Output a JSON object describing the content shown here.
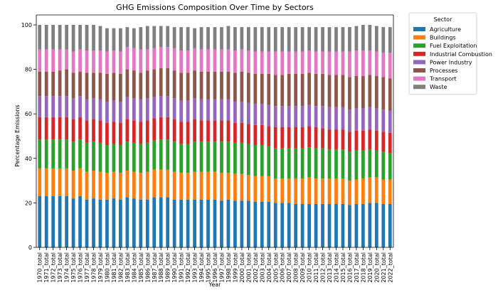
{
  "chart_data": {
    "type": "bar",
    "stacked": true,
    "title": "GHG Emissions Composition Over Time by Sectors",
    "xlabel": "Year",
    "ylabel": "Percentage Emissions",
    "ylim": [
      0,
      100
    ],
    "yticks": [
      0,
      20,
      40,
      60,
      80,
      100
    ],
    "legend_title": "Sector",
    "legend_position": "outside-right-top",
    "grid": false,
    "categories": [
      "1970_total",
      "1971_total",
      "1972_total",
      "1973_total",
      "1974_total",
      "1975_total",
      "1976_total",
      "1977_total",
      "1978_total",
      "1979_total",
      "1980_total",
      "1981_total",
      "1982_total",
      "1983_total",
      "1984_total",
      "1985_total",
      "1986_total",
      "1987_total",
      "1988_total",
      "1989_total",
      "1990_total",
      "1991_total",
      "1992_total",
      "1993_total",
      "1994_total",
      "1995_total",
      "1996_total",
      "1997_total",
      "1998_total",
      "1999_total",
      "2000_total",
      "2001_total",
      "2002_total",
      "2003_total",
      "2004_total",
      "2005_total",
      "2006_total",
      "2007_total",
      "2008_total",
      "2009_total",
      "2010_total",
      "2011_total",
      "2012_total",
      "2013_total",
      "2014_total",
      "2015_total",
      "2016_total",
      "2017_total",
      "2018_total",
      "2019_total",
      "2020_total",
      "2021_total",
      "2022_total"
    ],
    "series": [
      {
        "name": "Agriculture",
        "color": "#1f77b4",
        "values": [
          23.0,
          23.0,
          23.0,
          23.0,
          23.0,
          22.0,
          23.0,
          21.5,
          22.0,
          21.5,
          21.5,
          22.0,
          21.5,
          22.5,
          22.0,
          21.5,
          21.5,
          22.5,
          22.5,
          22.5,
          21.5,
          21.5,
          21.5,
          21.5,
          21.5,
          21.5,
          21.5,
          21.0,
          21.5,
          21.0,
          21.0,
          21.0,
          20.5,
          20.5,
          20.5,
          20.0,
          20.0,
          20.0,
          19.5,
          19.5,
          19.5,
          19.5,
          19.5,
          19.5,
          19.5,
          19.5,
          19.0,
          19.5,
          19.5,
          20.0,
          20.0,
          19.5,
          19.5
        ]
      },
      {
        "name": "Buildings",
        "color": "#ff7f0e",
        "values": [
          12.5,
          12.5,
          12.5,
          12.5,
          12.5,
          12.5,
          12.5,
          12.5,
          12.5,
          12.5,
          12.0,
          12.0,
          12.0,
          12.0,
          12.0,
          12.0,
          12.5,
          12.5,
          12.5,
          12.5,
          12.5,
          12.0,
          12.0,
          12.5,
          12.5,
          12.5,
          12.5,
          12.5,
          12.0,
          12.0,
          12.0,
          11.5,
          11.5,
          11.5,
          11.5,
          11.0,
          11.0,
          11.0,
          11.5,
          11.5,
          12.0,
          11.5,
          11.5,
          11.5,
          11.5,
          11.5,
          11.0,
          11.0,
          11.5,
          11.5,
          11.5,
          11.0,
          11.0
        ]
      },
      {
        "name": "Fuel Exploitation",
        "color": "#2ca02c",
        "values": [
          13.0,
          13.0,
          13.0,
          13.0,
          13.0,
          13.0,
          13.0,
          13.0,
          13.0,
          13.0,
          12.5,
          12.5,
          12.5,
          13.0,
          13.0,
          13.0,
          13.0,
          13.0,
          13.5,
          13.5,
          13.5,
          13.0,
          13.0,
          13.5,
          13.5,
          13.5,
          13.5,
          14.0,
          14.0,
          14.0,
          14.0,
          14.0,
          14.0,
          14.0,
          13.5,
          13.5,
          13.5,
          13.5,
          13.5,
          13.5,
          13.5,
          13.5,
          13.5,
          13.0,
          13.0,
          13.0,
          13.0,
          13.0,
          12.5,
          12.5,
          12.0,
          12.5,
          12.0
        ]
      },
      {
        "name": "Industrial Combustion",
        "color": "#d62728",
        "values": [
          10.0,
          10.0,
          10.0,
          10.0,
          10.0,
          10.0,
          10.0,
          10.0,
          10.0,
          10.0,
          10.0,
          10.0,
          10.0,
          10.0,
          10.0,
          10.0,
          10.0,
          10.0,
          10.0,
          10.0,
          10.0,
          10.0,
          10.0,
          10.0,
          9.5,
          9.5,
          9.5,
          9.5,
          9.5,
          9.0,
          9.0,
          9.0,
          9.0,
          9.0,
          9.0,
          9.5,
          9.5,
          9.5,
          9.5,
          9.5,
          9.5,
          9.5,
          9.0,
          9.0,
          9.0,
          9.0,
          9.0,
          9.0,
          9.0,
          9.0,
          9.0,
          9.0,
          9.0
        ]
      },
      {
        "name": "Power Industry",
        "color": "#9467bd",
        "values": [
          9.5,
          9.5,
          9.5,
          9.5,
          9.5,
          9.5,
          9.5,
          9.5,
          9.5,
          9.5,
          9.5,
          9.5,
          9.5,
          10.0,
          10.0,
          10.0,
          10.0,
          9.5,
          9.5,
          9.5,
          9.5,
          9.5,
          9.5,
          9.5,
          9.5,
          9.5,
          9.5,
          9.5,
          9.5,
          9.5,
          9.5,
          9.5,
          9.5,
          9.5,
          9.5,
          9.5,
          9.5,
          9.5,
          9.5,
          9.5,
          9.5,
          9.5,
          10.0,
          10.0,
          10.0,
          10.0,
          10.0,
          10.0,
          10.0,
          10.0,
          10.0,
          10.0,
          10.0
        ]
      },
      {
        "name": "Processes",
        "color": "#8c564b",
        "values": [
          11.0,
          11.0,
          11.0,
          11.5,
          12.0,
          11.5,
          11.0,
          12.0,
          11.5,
          12.0,
          12.5,
          12.5,
          12.5,
          12.5,
          12.5,
          12.0,
          12.5,
          12.5,
          12.5,
          12.5,
          12.5,
          12.5,
          12.5,
          12.5,
          12.5,
          12.5,
          12.5,
          12.5,
          12.5,
          13.0,
          13.5,
          13.5,
          13.5,
          13.5,
          14.0,
          14.0,
          14.0,
          14.5,
          14.5,
          14.5,
          14.5,
          14.5,
          14.5,
          14.5,
          14.5,
          14.5,
          14.5,
          14.5,
          14.5,
          14.5,
          14.5,
          14.5,
          14.5
        ]
      },
      {
        "name": "Transport",
        "color": "#e377c2",
        "values": [
          10.0,
          10.0,
          10.0,
          9.5,
          9.0,
          9.5,
          10.0,
          10.0,
          10.0,
          10.0,
          10.0,
          10.0,
          10.0,
          10.0,
          10.0,
          10.5,
          9.5,
          9.5,
          9.5,
          9.5,
          10.0,
          10.0,
          10.0,
          10.0,
          10.0,
          10.0,
          10.0,
          10.0,
          10.0,
          10.0,
          10.0,
          10.0,
          10.0,
          10.0,
          10.0,
          10.5,
          10.5,
          10.0,
          10.0,
          10.0,
          10.0,
          10.0,
          10.0,
          10.5,
          10.5,
          10.5,
          11.5,
          11.5,
          11.5,
          11.0,
          11.0,
          11.0,
          11.5
        ]
      },
      {
        "name": "Waste",
        "color": "#7f7f7f",
        "values": [
          11.0,
          11.0,
          11.0,
          11.0,
          11.0,
          12.0,
          11.0,
          11.5,
          11.5,
          11.0,
          10.5,
          10.0,
          10.5,
          9.0,
          9.0,
          10.0,
          10.5,
          10.0,
          9.5,
          9.5,
          9.5,
          10.5,
          10.5,
          9.0,
          10.0,
          10.0,
          10.0,
          10.0,
          10.5,
          10.5,
          10.0,
          10.5,
          11.0,
          11.0,
          11.0,
          11.0,
          11.0,
          11.0,
          11.0,
          11.0,
          10.5,
          11.0,
          11.0,
          11.0,
          11.0,
          11.0,
          11.0,
          11.0,
          11.5,
          11.5,
          11.5,
          11.5,
          11.5
        ]
      }
    ]
  }
}
